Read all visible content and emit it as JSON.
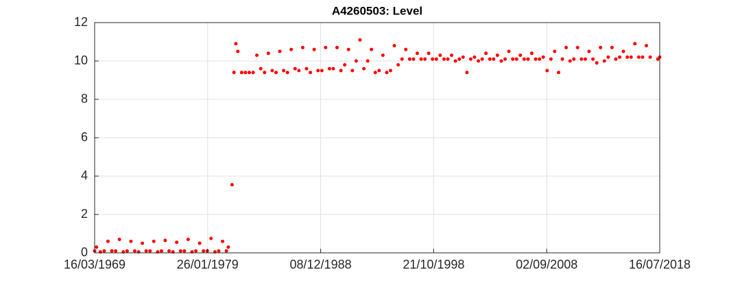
{
  "chart_data": {
    "type": "scatter",
    "title": "A4260503: Level",
    "color": "#ff0000",
    "grid": true,
    "xlim": [
      "16/03/1969",
      "16/07/2018"
    ],
    "xticks": [
      "16/03/1969",
      "26/01/1979",
      "08/12/1988",
      "21/10/1998",
      "02/09/2008",
      "16/07/2018"
    ],
    "ylim": [
      0,
      12
    ],
    "yticks": [
      0,
      2,
      4,
      6,
      8,
      10,
      12
    ],
    "x": [
      "16/03/1969",
      "15/05/1969",
      "15/09/1969",
      "15/01/1970",
      "15/05/1970",
      "15/09/1970",
      "15/01/1971",
      "15/05/1971",
      "15/09/1971",
      "15/01/1972",
      "15/05/1972",
      "15/09/1972",
      "15/01/1973",
      "15/05/1973",
      "15/09/1973",
      "15/01/1974",
      "15/05/1974",
      "15/09/1974",
      "15/01/1975",
      "15/05/1975",
      "15/09/1975",
      "15/01/1976",
      "15/05/1976",
      "15/09/1976",
      "15/01/1977",
      "15/05/1977",
      "15/09/1977",
      "15/01/1978",
      "15/05/1978",
      "15/09/1978",
      "15/01/1979",
      "15/05/1979",
      "15/09/1979",
      "15/01/1980",
      "15/05/1980",
      "15/09/1980",
      "15/11/1980",
      "15/03/1981",
      "15/05/1981",
      "15/07/1981",
      "15/09/1981",
      "15/01/1982",
      "15/05/1982",
      "15/09/1982",
      "15/01/1983",
      "15/05/1983",
      "15/09/1983",
      "15/01/1984",
      "15/05/1984",
      "15/09/1984",
      "15/01/1985",
      "15/05/1985",
      "15/09/1985",
      "15/01/1986",
      "15/05/1986",
      "15/09/1986",
      "15/01/1987",
      "15/05/1987",
      "15/09/1987",
      "15/01/1988",
      "15/05/1988",
      "15/09/1988",
      "15/01/1989",
      "15/05/1989",
      "15/09/1989",
      "15/01/1990",
      "15/05/1990",
      "15/09/1990",
      "15/01/1991",
      "15/05/1991",
      "15/09/1991",
      "15/01/1992",
      "15/05/1992",
      "15/09/1992",
      "15/01/1993",
      "15/05/1993",
      "15/09/1993",
      "15/01/1994",
      "15/05/1994",
      "15/09/1994",
      "15/01/1995",
      "15/05/1995",
      "15/09/1995",
      "15/01/1996",
      "15/05/1996",
      "15/09/1996",
      "15/01/1997",
      "15/05/1997",
      "15/09/1997",
      "15/01/1998",
      "15/05/1998",
      "15/09/1998",
      "15/01/1999",
      "15/05/1999",
      "15/09/1999",
      "15/01/2000",
      "15/05/2000",
      "15/09/2000",
      "15/01/2001",
      "15/05/2001",
      "15/09/2001",
      "15/01/2002",
      "15/05/2002",
      "15/09/2002",
      "15/01/2003",
      "15/05/2003",
      "15/09/2003",
      "15/01/2004",
      "15/05/2004",
      "15/09/2004",
      "15/01/2005",
      "15/05/2005",
      "15/09/2005",
      "15/01/2006",
      "15/05/2006",
      "15/09/2006",
      "15/01/2007",
      "15/05/2007",
      "15/09/2007",
      "15/01/2008",
      "15/05/2008",
      "15/09/2008",
      "15/01/2009",
      "15/05/2009",
      "15/09/2009",
      "15/01/2010",
      "15/05/2010",
      "15/09/2010",
      "15/01/2011",
      "15/05/2011",
      "15/09/2011",
      "15/01/2012",
      "15/05/2012",
      "15/09/2012",
      "15/01/2013",
      "15/05/2013",
      "15/09/2013",
      "15/01/2014",
      "15/05/2014",
      "15/09/2014",
      "15/01/2015",
      "15/05/2015",
      "15/09/2015",
      "15/01/2016",
      "15/05/2016",
      "15/09/2016",
      "15/01/2017",
      "15/05/2017",
      "15/09/2017",
      "15/05/2018",
      "16/07/2018"
    ],
    "values": [
      0.1,
      0.3,
      0.05,
      0.1,
      0.6,
      0.1,
      0.1,
      0.7,
      0.05,
      0.1,
      0.6,
      0.1,
      0.05,
      0.5,
      0.1,
      0.1,
      0.6,
      0.05,
      0.1,
      0.65,
      0.1,
      0.05,
      0.55,
      0.1,
      0.1,
      0.7,
      0.05,
      0.1,
      0.5,
      0.1,
      0.1,
      0.75,
      0.05,
      0.1,
      0.6,
      0.1,
      0.3,
      3.55,
      9.4,
      10.9,
      10.5,
      9.4,
      9.4,
      9.4,
      9.4,
      10.3,
      9.6,
      9.4,
      10.4,
      9.5,
      9.4,
      10.5,
      9.5,
      9.4,
      10.6,
      9.6,
      9.5,
      10.7,
      9.6,
      9.4,
      10.6,
      9.5,
      9.5,
      10.7,
      9.6,
      9.6,
      10.7,
      9.5,
      9.8,
      10.6,
      9.5,
      10.0,
      11.1,
      9.6,
      10.0,
      10.6,
      9.4,
      9.5,
      10.3,
      9.4,
      9.5,
      10.8,
      9.8,
      10.1,
      10.6,
      10.1,
      10.1,
      10.4,
      10.1,
      10.1,
      10.4,
      10.1,
      10.1,
      10.3,
      10.1,
      10.1,
      10.3,
      10.0,
      10.1,
      10.2,
      9.4,
      10.1,
      10.2,
      10.0,
      10.1,
      10.4,
      10.1,
      10.1,
      10.3,
      10.0,
      10.1,
      10.5,
      10.1,
      10.1,
      10.3,
      10.1,
      10.1,
      10.4,
      10.1,
      10.1,
      10.2,
      9.5,
      10.1,
      10.5,
      9.4,
      10.1,
      10.7,
      10.0,
      10.1,
      10.7,
      10.1,
      10.1,
      10.5,
      10.1,
      9.9,
      10.7,
      10.0,
      10.2,
      10.7,
      10.1,
      10.2,
      10.5,
      10.2,
      10.2,
      10.9,
      10.2,
      10.2,
      10.8,
      10.2,
      10.1,
      10.2
    ]
  }
}
